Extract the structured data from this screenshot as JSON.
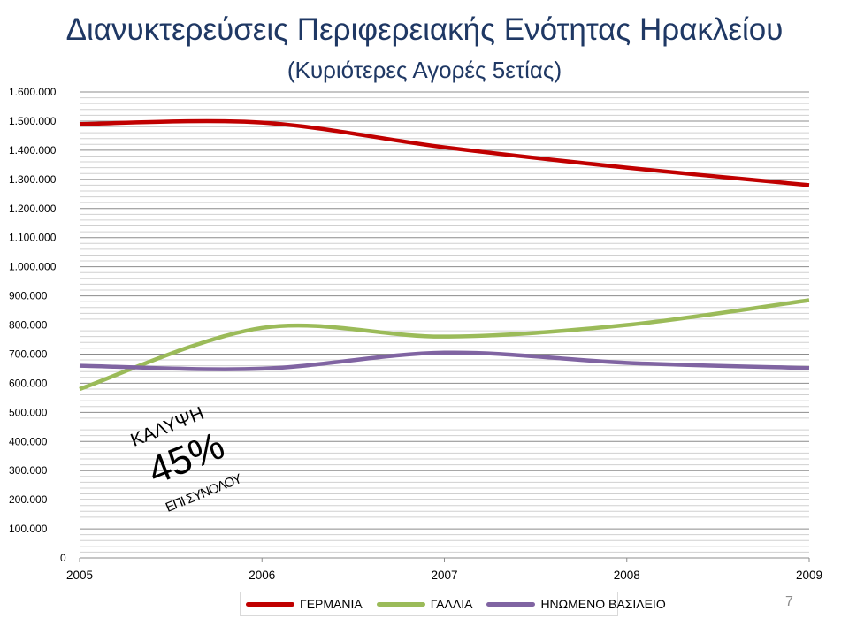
{
  "title": "Διανυκτερεύσεις Περιφερειακής Ενότητας Ηρακλείου",
  "subtitle": "(Κυριότερες Αγορές 5ετίας)",
  "annotation": {
    "label": "ΚΑΛΥΨΗ",
    "value": "45%",
    "sublabel": "ΕΠΙ ΣΥΝΟΛΟΥ"
  },
  "page_number": "7",
  "chart_data": {
    "type": "line",
    "title": "Διανυκτερεύσεις Περιφερειακής Ενότητας Ηρακλείου",
    "subtitle": "(Κυριότερες Αγορές 5ετίας)",
    "x": [
      "2005",
      "2006",
      "2007",
      "2008",
      "2009"
    ],
    "ylim": [
      0,
      1600000
    ],
    "y_ticks": [
      0,
      100000,
      200000,
      300000,
      400000,
      500000,
      600000,
      700000,
      800000,
      900000,
      1000000,
      1100000,
      1200000,
      1300000,
      1400000,
      1500000,
      1600000
    ],
    "y_tick_labels": [
      "0",
      "100.000",
      "200.000",
      "300.000",
      "400.000",
      "500.000",
      "600.000",
      "700.000",
      "800.000",
      "900.000",
      "1.000.000",
      "1.100.000",
      "1.200.000",
      "1.300.000",
      "1.400.000",
      "1.500.000",
      "1.600.000"
    ],
    "minor_gridlines_per_major": 4,
    "grid": true,
    "smooth": true,
    "legend_position": "bottom",
    "series": [
      {
        "name": "ΓΕΡΜΑΝΙΑ",
        "color": "#c00000",
        "values": [
          1490000,
          1495000,
          1410000,
          1340000,
          1280000
        ]
      },
      {
        "name": "ΓΑΛΛΙΑ",
        "color": "#9bbb59",
        "values": [
          580000,
          790000,
          760000,
          800000,
          885000
        ]
      },
      {
        "name": "ΗΝΩΜΕΝΟ ΒΑΣΙΛΕΙΟ",
        "color": "#8064a2",
        "values": [
          660000,
          650000,
          705000,
          670000,
          652000
        ]
      }
    ]
  }
}
